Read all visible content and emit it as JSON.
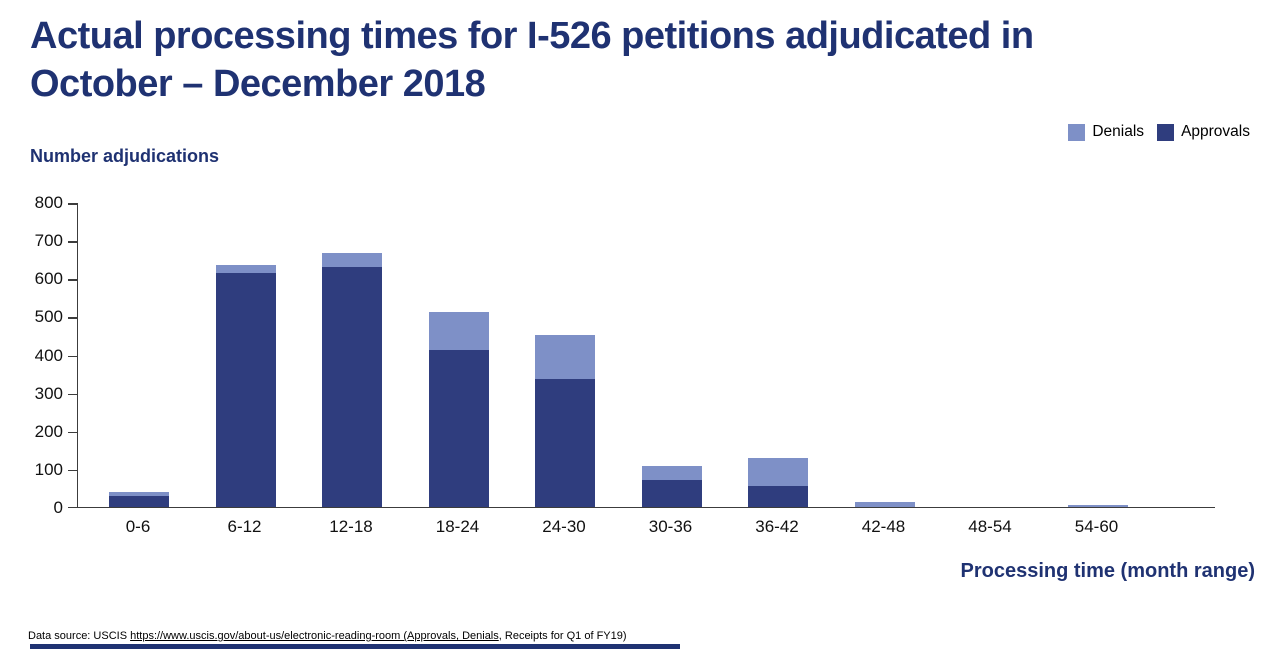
{
  "title": {
    "line1": "Actual processing times for I-526 petitions adjudicated in",
    "line2": "October – December 2018"
  },
  "y_axis_label": "Number adjudications",
  "x_axis_label": "Processing time (month range)",
  "footer": {
    "prefix": "Data source: USCIS ",
    "link": "https://www.uscis.gov/about-us/electronic-reading-room (Approvals, Denials",
    "suffix": ", Receipts for Q1 of FY19)"
  },
  "colors": {
    "approvals": "#2F3D7E",
    "denials": "#7E90C7",
    "heading_navy": "#1F3272",
    "axis_line": "#3c3c3c"
  },
  "legend": [
    {
      "label": "Denials",
      "color": "#7E90C7"
    },
    {
      "label": "Approvals",
      "color": "#2F3D7E"
    }
  ],
  "chart_data": {
    "type": "bar",
    "stacked": true,
    "title": "Actual processing times for I-526 petitions adjudicated in October – December 2018",
    "xlabel": "Processing time (month range)",
    "ylabel": "Number adjudications",
    "categories": [
      "0-6",
      "6-12",
      "12-18",
      "18-24",
      "24-30",
      "30-36",
      "36-42",
      "42-48",
      "48-54",
      "54-60"
    ],
    "series": [
      {
        "name": "Approvals",
        "color": "#2F3D7E",
        "values": [
          30,
          615,
          630,
          412,
          335,
          70,
          55,
          0,
          0,
          0
        ]
      },
      {
        "name": "Denials",
        "color": "#7E90C7",
        "values": [
          10,
          20,
          35,
          100,
          115,
          37,
          73,
          12,
          0,
          6
        ]
      }
    ],
    "totals": [
      40,
      635,
      665,
      512,
      450,
      107,
      128,
      12,
      0,
      6
    ],
    "ylim": [
      0,
      800
    ],
    "yticks": [
      0,
      100,
      200,
      300,
      400,
      500,
      600,
      700,
      800
    ],
    "grid": false,
    "legend_position": "top-right"
  }
}
